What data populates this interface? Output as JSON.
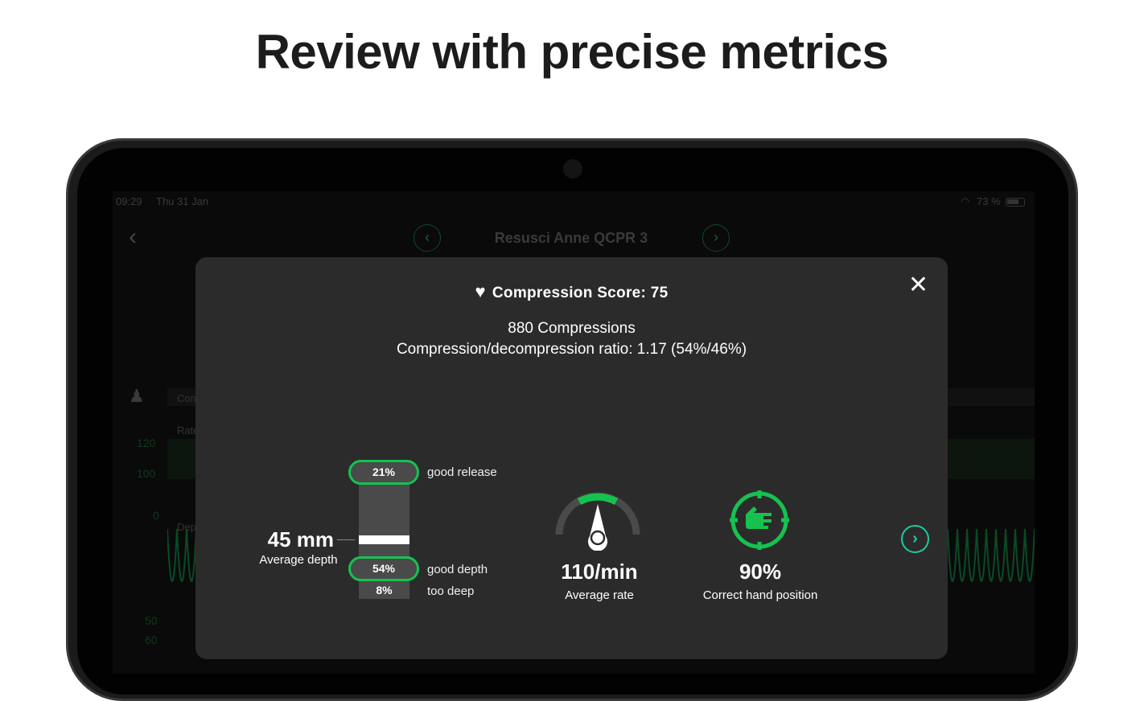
{
  "headline": "Review with precise metrics",
  "status_bar": {
    "time": "09:29",
    "date": "Thu 31 Jan",
    "battery": "73 %"
  },
  "app": {
    "title": "Resusci Anne QCPR 3",
    "row_labels": [
      "Con",
      "Rate",
      "Dep"
    ],
    "axis_labels": [
      "120",
      "100",
      "0",
      "50",
      "60"
    ]
  },
  "modal": {
    "score_label": "Compression Score: 75",
    "compressions": "880 Compressions",
    "ratio": "Compression/decompression ratio: 1.17 (54%/46%)",
    "depth": {
      "value": "45 mm",
      "label": "Average depth",
      "release_pct": "21%",
      "release_label": "good release",
      "good_depth_pct": "54%",
      "good_depth_label": "good depth",
      "too_deep_pct": "8%",
      "too_deep_label": "too deep"
    },
    "rate": {
      "value": "110/min",
      "label": "Average rate"
    },
    "hand": {
      "value": "90%",
      "label": "Correct hand position"
    }
  },
  "colors": {
    "accent": "#16c24f",
    "next": "#1fc9a0"
  }
}
